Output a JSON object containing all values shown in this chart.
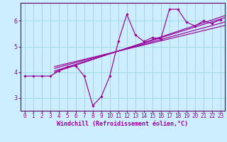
{
  "xlabel": "Windchill (Refroidissement éolien,°C)",
  "bg_color": "#cceeff",
  "grid_color": "#99dddd",
  "line_color": "#990099",
  "axis_color": "#660066",
  "xlim": [
    -0.5,
    23.5
  ],
  "ylim": [
    2.5,
    6.7
  ],
  "yticks": [
    3,
    4,
    5,
    6
  ],
  "xticks": [
    0,
    1,
    2,
    3,
    4,
    5,
    6,
    7,
    8,
    9,
    10,
    11,
    12,
    13,
    14,
    15,
    16,
    17,
    18,
    19,
    20,
    21,
    22,
    23
  ],
  "data_x": [
    0,
    1,
    2,
    3,
    4,
    5,
    6,
    7,
    8,
    9,
    10,
    11,
    12,
    13,
    14,
    15,
    16,
    17,
    18,
    19,
    20,
    21,
    22,
    23
  ],
  "data_y": [
    3.85,
    3.85,
    3.85,
    3.85,
    4.05,
    4.2,
    4.25,
    3.85,
    2.7,
    3.05,
    3.85,
    5.2,
    6.25,
    5.45,
    5.2,
    5.35,
    5.3,
    6.45,
    6.45,
    5.95,
    5.8,
    6.0,
    5.9,
    6.05
  ],
  "reg_lines": [
    {
      "x": [
        3.5,
        23.5
      ],
      "y": [
        4.05,
        6.12
      ]
    },
    {
      "x": [
        3.5,
        23.5
      ],
      "y": [
        4.15,
        5.95
      ]
    },
    {
      "x": [
        3.5,
        23.5
      ],
      "y": [
        4.22,
        5.82
      ]
    },
    {
      "x": [
        3.5,
        23.5
      ],
      "y": [
        4.0,
        6.2
      ]
    }
  ],
  "xlabel_fontsize": 6.0,
  "tick_fontsize": 5.5
}
